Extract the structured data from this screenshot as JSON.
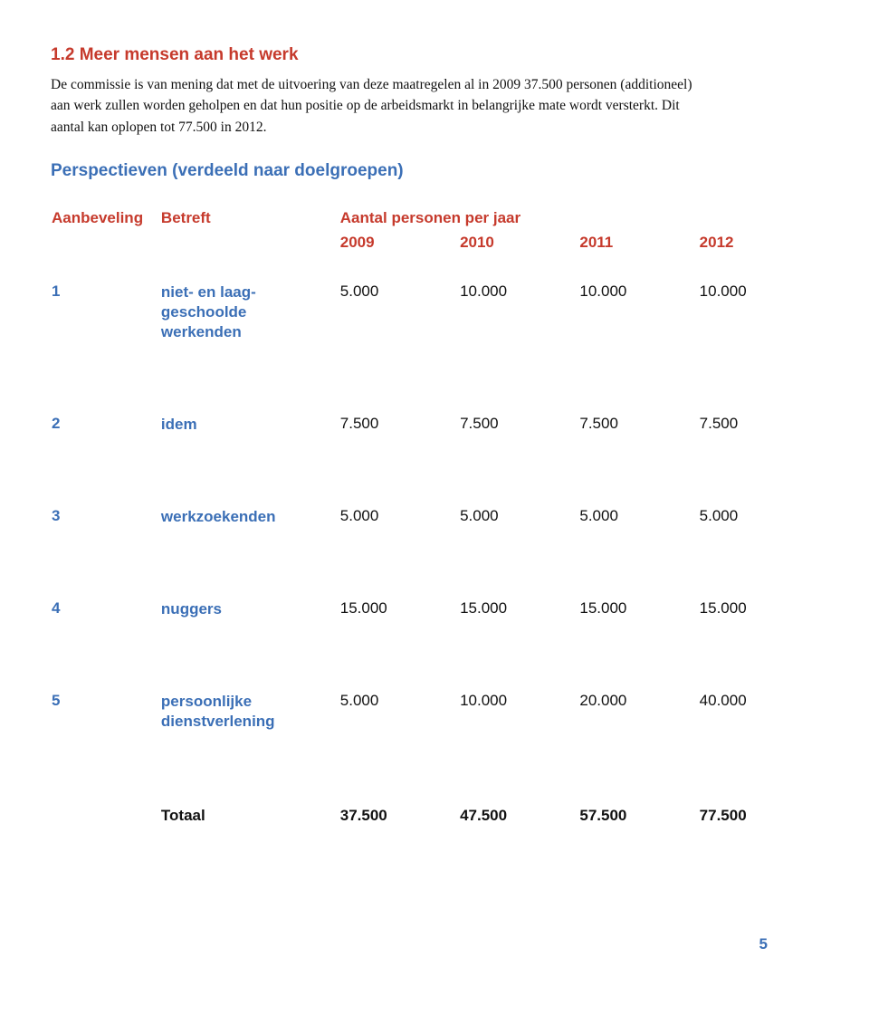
{
  "colors": {
    "accent_red": "#c63a2c",
    "accent_blue": "#3b6fb6",
    "text": "#111111",
    "background": "#ffffff"
  },
  "section": {
    "number": "1.2",
    "title": "Meer mensen aan het werk",
    "heading": "1.2   Meer mensen aan het werk",
    "body": "De commissie is van mening dat met de uitvoering van deze maatregelen al in 2009 37.500 personen (additioneel) aan werk zullen worden geholpen en dat hun positie op de arbeidsmarkt in belangrijke mate wordt versterkt. Dit aantal kan oplopen tot 77.500 in 2012."
  },
  "subsection_heading": "Perspectieven (verdeeld naar doelgroepen)",
  "table": {
    "headers": {
      "aanbeveling": "Aanbeveling",
      "betreft": "Betreft",
      "aantal": "Aantal personen per jaar",
      "years": [
        "2009",
        "2010",
        "2011",
        "2012"
      ]
    },
    "rows": [
      {
        "num": "1",
        "betreft": "niet- en laag-\ngeschoolde\nwerkenden",
        "values": [
          "5.000",
          "10.000",
          "10.000",
          "10.000"
        ]
      },
      {
        "num": "2",
        "betreft": "idem",
        "values": [
          "7.500",
          "7.500",
          "7.500",
          "7.500"
        ]
      },
      {
        "num": "3",
        "betreft": "werkzoekenden",
        "values": [
          "5.000",
          "5.000",
          "5.000",
          "5.000"
        ]
      },
      {
        "num": "4",
        "betreft": "nuggers",
        "values": [
          "15.000",
          "15.000",
          "15.000",
          "15.000"
        ]
      },
      {
        "num": "5",
        "betreft": "persoonlijke\ndienstverlening",
        "values": [
          "5.000",
          "10.000",
          "20.000",
          "40.000"
        ]
      }
    ],
    "totals": {
      "label": "Totaal",
      "values": [
        "37.500",
        "47.500",
        "57.500",
        "77.500"
      ]
    }
  },
  "page_number": "5"
}
